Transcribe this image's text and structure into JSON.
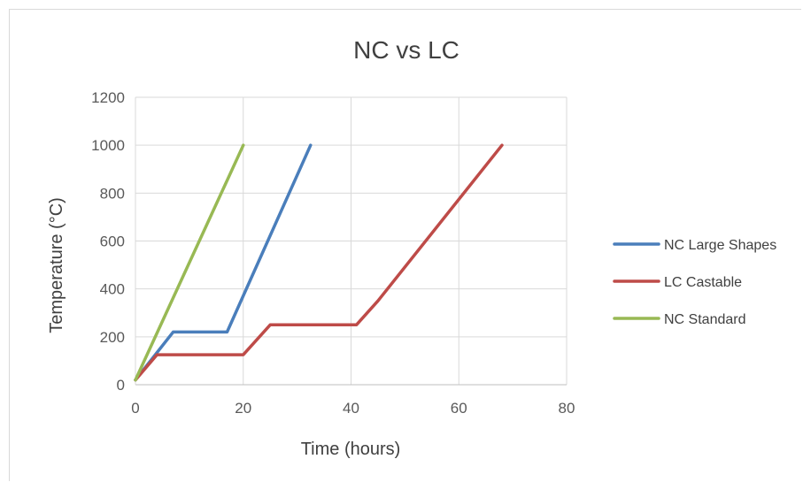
{
  "chart_data": {
    "type": "line",
    "title": "NC vs LC",
    "xlabel": "Time (hours)",
    "ylabel": "Temperature (°C)",
    "xlim": [
      0,
      80
    ],
    "ylim": [
      0,
      1200
    ],
    "xticks": [
      0,
      20,
      40,
      60,
      80
    ],
    "yticks": [
      0,
      200,
      400,
      600,
      800,
      1000,
      1200
    ],
    "grid": true,
    "legend_position": "right",
    "series": [
      {
        "name": "NC Large Shapes",
        "color": "#4a7ebb",
        "points": [
          [
            0,
            20
          ],
          [
            7,
            220
          ],
          [
            17,
            220
          ],
          [
            32.5,
            1000
          ]
        ]
      },
      {
        "name": "LC Castable",
        "color": "#be4b48",
        "points": [
          [
            0,
            20
          ],
          [
            4,
            125
          ],
          [
            20,
            125
          ],
          [
            25,
            250
          ],
          [
            41,
            250
          ],
          [
            45,
            350
          ],
          [
            68,
            1000
          ]
        ]
      },
      {
        "name": "NC Standard",
        "color": "#98b954",
        "points": [
          [
            0,
            20
          ],
          [
            20,
            1000
          ]
        ]
      }
    ]
  }
}
